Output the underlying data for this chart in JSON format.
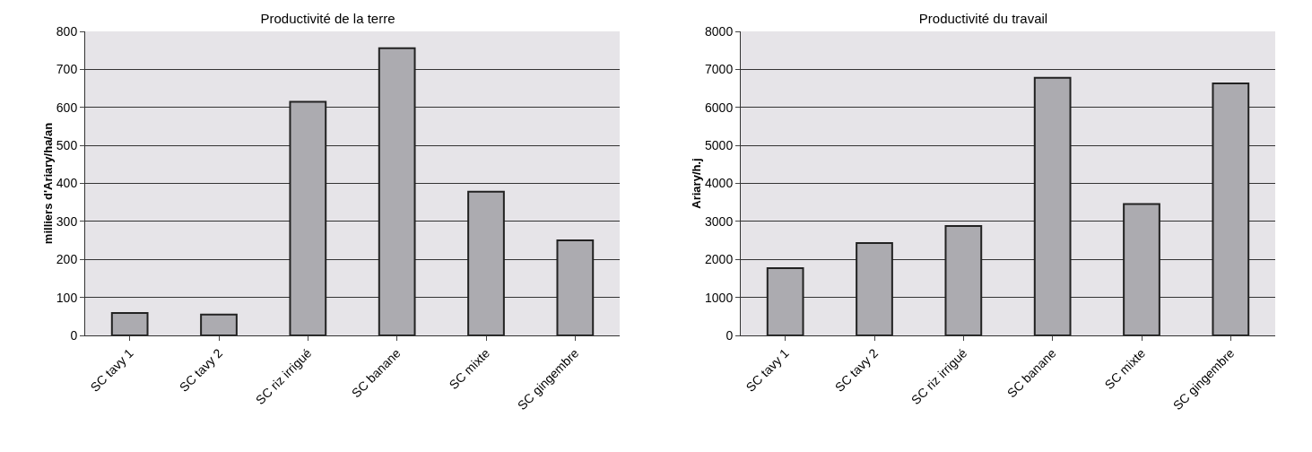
{
  "chart_data": [
    {
      "type": "bar",
      "title": "Productivité de la terre",
      "ylabel": "milliers d'Ariary/ha/an",
      "categories": [
        "SC tavy 1",
        "SC tavy 2",
        "SC riz irrigué",
        "SC banane",
        "SC mixte",
        "SC gingembre"
      ],
      "values": [
        59,
        55,
        615,
        756,
        378,
        250
      ],
      "color": "#acabb0",
      "ylim": [
        0,
        800
      ],
      "yticks": [
        0,
        100,
        200,
        300,
        400,
        500,
        600,
        700,
        800
      ],
      "grid": "y",
      "legend": false
    },
    {
      "type": "bar",
      "title": "Productivité du travail",
      "ylabel": "Ariary/h.j",
      "categories": [
        "SC tavy 1",
        "SC tavy 2",
        "SC riz irrigué",
        "SC banane",
        "SC mixte",
        "SC gingembre"
      ],
      "values": [
        1770,
        2430,
        2880,
        6780,
        3460,
        6630
      ],
      "color": "#acabb0",
      "ylim": [
        0,
        8000
      ],
      "yticks": [
        0,
        1000,
        2000,
        3000,
        4000,
        5000,
        6000,
        7000,
        8000
      ],
      "grid": "y",
      "legend": false
    }
  ]
}
